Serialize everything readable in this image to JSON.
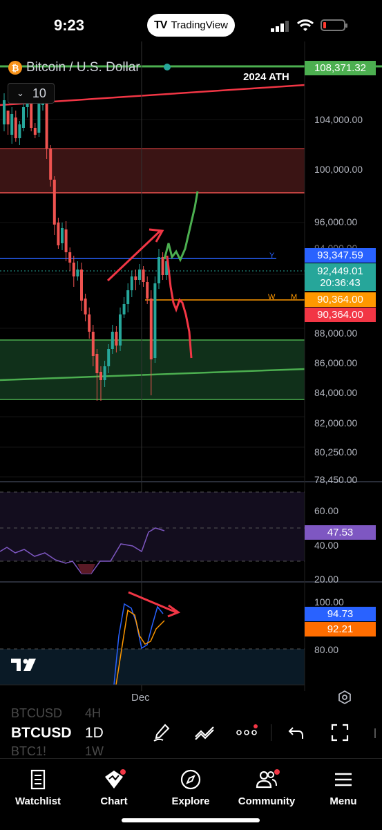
{
  "status_bar": {
    "time": "9:23",
    "app_pill": "TradingView"
  },
  "chart": {
    "symbol_name": "Bitcoin / U.S. Dollar",
    "interval": "10",
    "annotation": "2024 ATH",
    "price_labels": {
      "ath": "108,371.32",
      "level_y": "93,347.59",
      "last_price": "92,449.01",
      "countdown": "20:36:43",
      "level_w": "90,364.00",
      "level_m": "90,364.00"
    },
    "level_tags": {
      "y": "Y",
      "w": "W",
      "m": "M"
    },
    "price_axis": [
      "104,000.00",
      "100,000.00",
      "96,000.00",
      "94,000.00",
      "88,000.00",
      "86,000.00",
      "84,000.00",
      "82,000.00",
      "80,250.00",
      "78,450.00"
    ],
    "rsi_axis": [
      "60.00",
      "40.00",
      "20.00"
    ],
    "rsi_value": "47.53",
    "stoch_axis": [
      "100.00",
      "80.00"
    ],
    "stoch_k": "94.73",
    "stoch_d": "92.21",
    "date_label": "Dec",
    "colors": {
      "up": "#26a69a",
      "down": "#ef5350",
      "ath_green": "#4caf50",
      "blue": "#2962ff",
      "orange": "#ff9800",
      "red": "#f23645",
      "rsi_purple": "#7e57c2"
    }
  },
  "toolbar": {
    "symbol": "BTCUSD",
    "timeframe": "1D",
    "ghost_above_symbol": "BTCUSD",
    "ghost_above_tf": "4H",
    "ghost_below_symbol": "BTC1!",
    "ghost_below_tf": "1W"
  },
  "tabs": [
    {
      "label": "Watchlist",
      "icon": "watchlist-icon"
    },
    {
      "label": "Chart",
      "icon": "chart-icon"
    },
    {
      "label": "Explore",
      "icon": "compass-icon"
    },
    {
      "label": "Community",
      "icon": "community-icon"
    },
    {
      "label": "Menu",
      "icon": "menu-icon"
    }
  ]
}
